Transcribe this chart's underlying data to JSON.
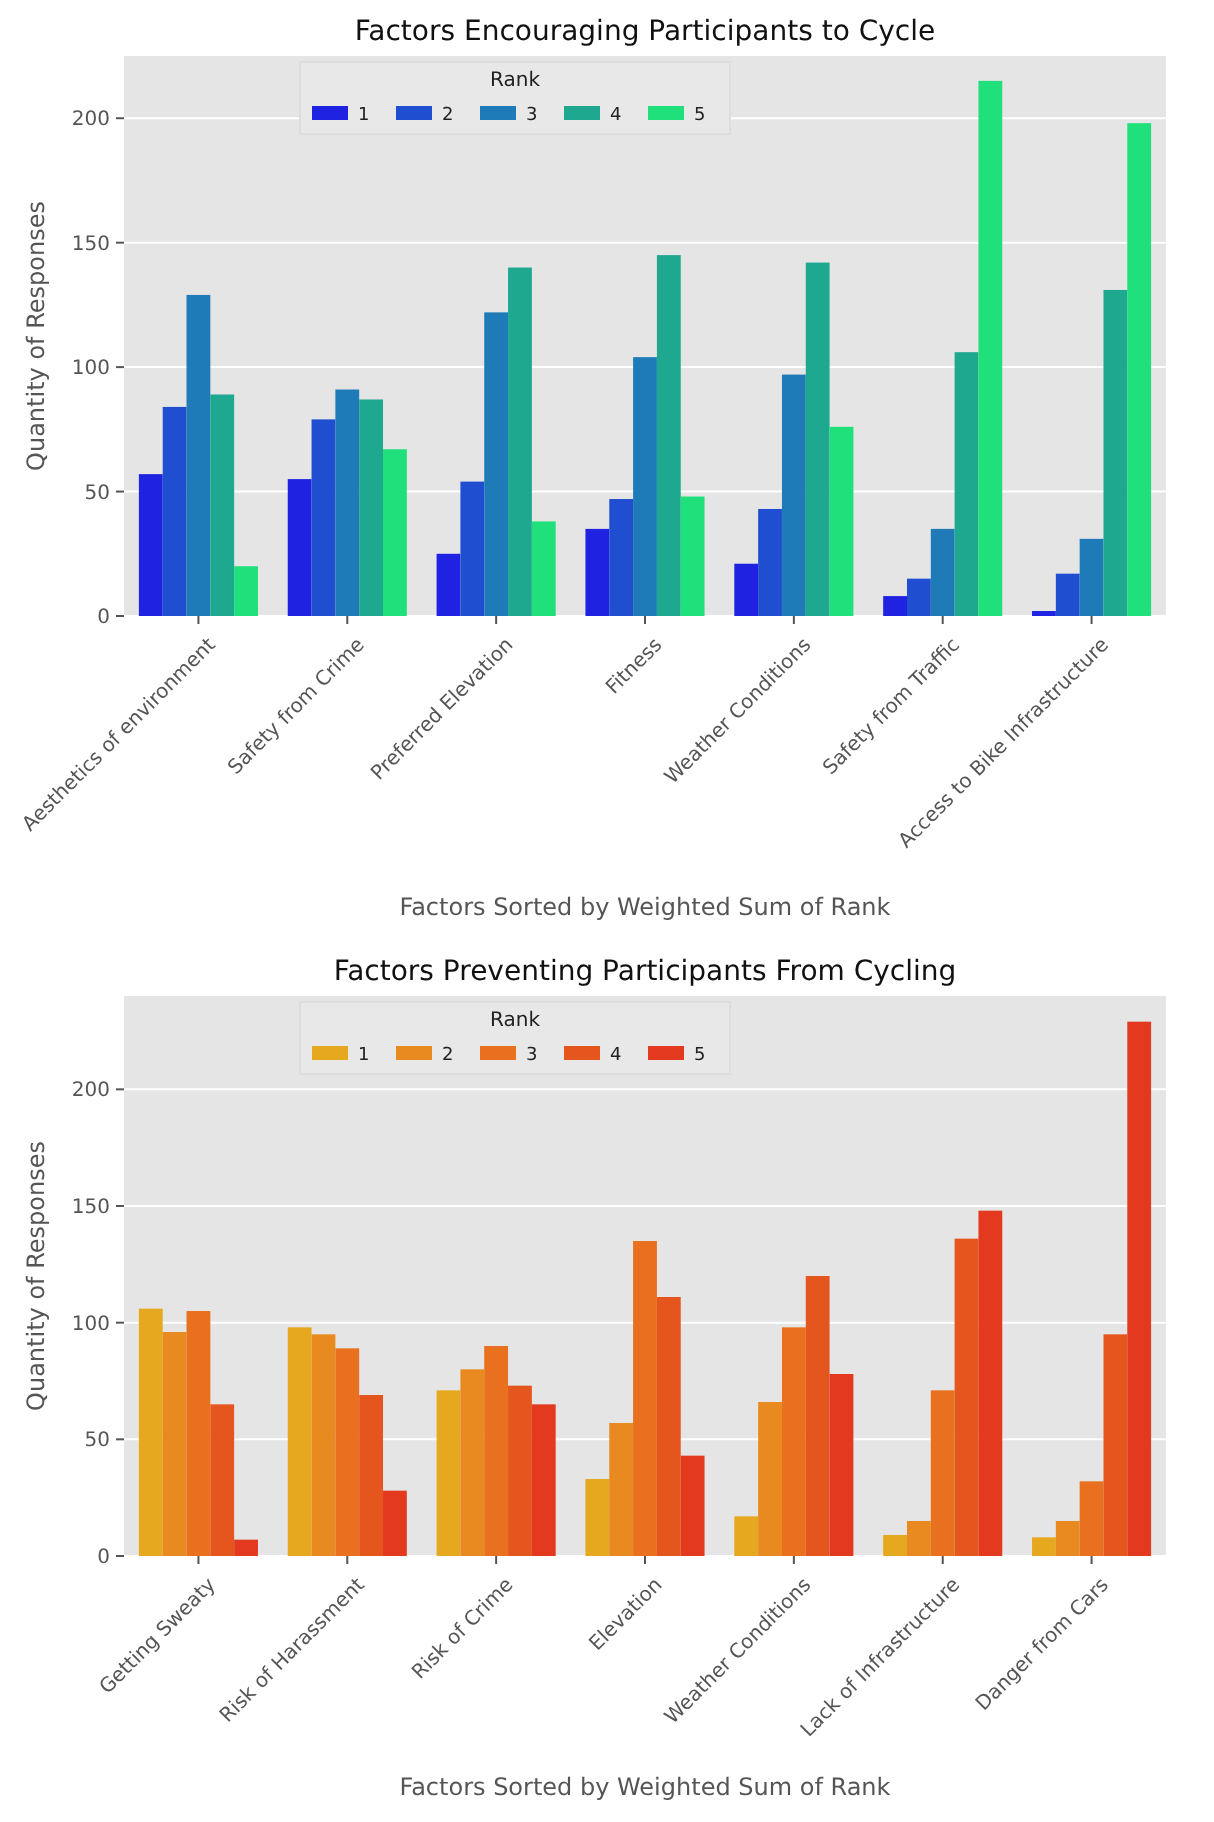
{
  "chart_data": [
    {
      "type": "bar",
      "title": "Factors Encouraging Participants to Cycle",
      "xlabel": "Factors Sorted by Weighted Sum of Rank",
      "ylabel": "Quantity of Responses",
      "legend_title": "Rank",
      "legend": "top",
      "grid": "y",
      "categories": [
        "Aesthetics of environment",
        "Safety from Crime",
        "Preferred Elevation",
        "Fitness",
        "Weather Conditions",
        "Safety from Traffic",
        "Access to Bike Infrastructure"
      ],
      "ylim": [
        0,
        225
      ],
      "yticks": [
        0,
        50,
        100,
        150,
        200
      ],
      "series": [
        {
          "name": "1",
          "color": "#1f22e0",
          "values": [
            57,
            55,
            25,
            35,
            21,
            8,
            2
          ]
        },
        {
          "name": "2",
          "color": "#1f4fd0",
          "values": [
            84,
            79,
            54,
            47,
            43,
            15,
            17
          ]
        },
        {
          "name": "3",
          "color": "#1f7bb8",
          "values": [
            129,
            91,
            122,
            104,
            97,
            35,
            31
          ]
        },
        {
          "name": "4",
          "color": "#1fa890",
          "values": [
            89,
            87,
            140,
            145,
            142,
            106,
            131
          ]
        },
        {
          "name": "5",
          "color": "#1fe07a",
          "values": [
            20,
            67,
            38,
            48,
            76,
            215,
            198
          ]
        }
      ]
    },
    {
      "type": "bar",
      "title": "Factors Preventing Participants From Cycling",
      "xlabel": "Factors Sorted by Weighted Sum of Rank",
      "ylabel": "Quantity of Responses",
      "legend_title": "Rank",
      "legend": "top",
      "grid": "y",
      "categories": [
        "Getting Sweaty",
        "Risk of Harassment",
        "Risk of Crime",
        "Elevation",
        "Weather Conditions",
        "Lack of Infrastructure",
        "Danger from Cars"
      ],
      "ylim": [
        0,
        240
      ],
      "yticks": [
        0,
        50,
        100,
        150,
        200
      ],
      "series": [
        {
          "name": "1",
          "color": "#e6a81f",
          "values": [
            106,
            98,
            71,
            33,
            17,
            9,
            8
          ]
        },
        {
          "name": "2",
          "color": "#e88a1f",
          "values": [
            96,
            95,
            80,
            57,
            66,
            15,
            15
          ]
        },
        {
          "name": "3",
          "color": "#e8701f",
          "values": [
            105,
            89,
            90,
            135,
            98,
            71,
            32
          ]
        },
        {
          "name": "4",
          "color": "#e5561f",
          "values": [
            65,
            69,
            73,
            111,
            120,
            136,
            95
          ]
        },
        {
          "name": "5",
          "color": "#e33a1f",
          "values": [
            7,
            28,
            65,
            43,
            78,
            148,
            229
          ]
        }
      ]
    }
  ]
}
